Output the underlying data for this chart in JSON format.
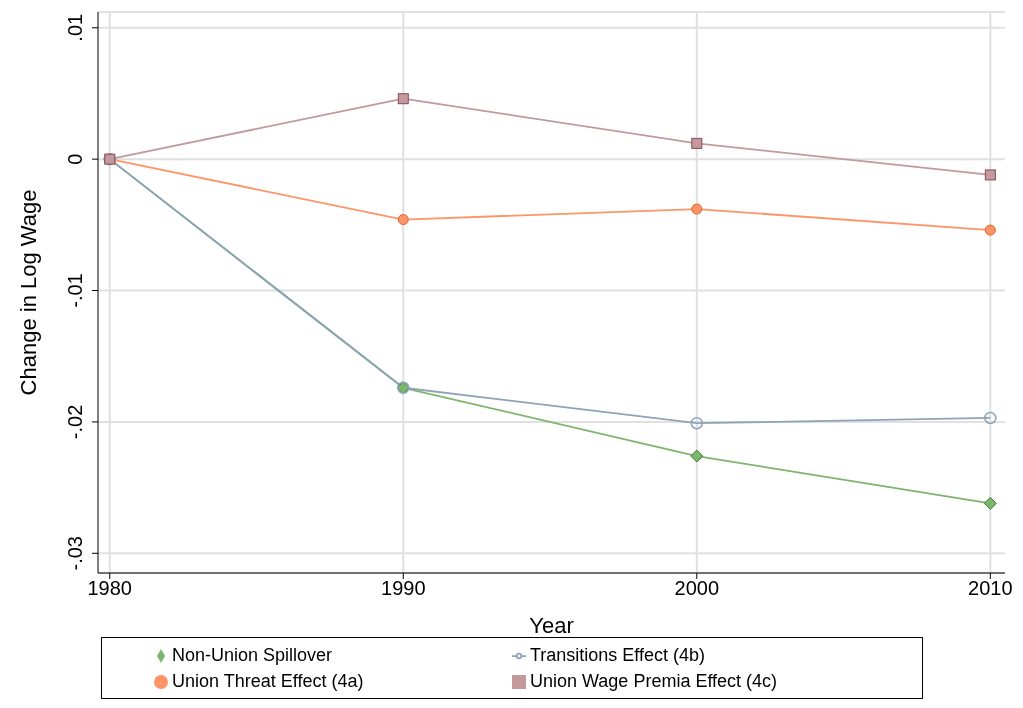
{
  "chart_data": {
    "type": "line",
    "xlabel": "Year",
    "ylabel": "Change in Log Wage",
    "x": [
      1980,
      1990,
      2000,
      2010
    ],
    "xlim": [
      1979.6,
      2010.5
    ],
    "xticks": [
      1980,
      1990,
      2000,
      2010
    ],
    "ylim": [
      -0.0315,
      0.0112
    ],
    "yticks": [
      {
        "value": 0.01,
        "label": ".01"
      },
      0,
      {
        "value": -0.01,
        "label": "-.01"
      },
      {
        "value": -0.02,
        "label": "-.02"
      },
      {
        "value": -0.03,
        "label": "-.03"
      }
    ],
    "grid": true,
    "legend": "bottom",
    "line_style": "solid",
    "series": [
      {
        "name": "Non-Union Spillover",
        "color": "#7cb56c",
        "marker": "diamond",
        "values": [
          0,
          -0.0174,
          -0.0226,
          -0.0262
        ]
      },
      {
        "name": "Union Threat Effect (4a)",
        "color": "#ff9466",
        "marker": "circle",
        "values": [
          0,
          -0.0046,
          -0.0038,
          -0.0054
        ]
      },
      {
        "name": "Transitions Effect (4b)",
        "color": "#8ea2b8",
        "marker": "hollow-circle",
        "values": [
          0,
          -0.0174,
          -0.0201,
          -0.0197
        ]
      },
      {
        "name": "Union Wage Premia Effect (4c)",
        "color": "#c3999d",
        "marker": "square",
        "values": [
          0,
          0.0046,
          0.0012,
          -0.0012
        ]
      }
    ]
  }
}
